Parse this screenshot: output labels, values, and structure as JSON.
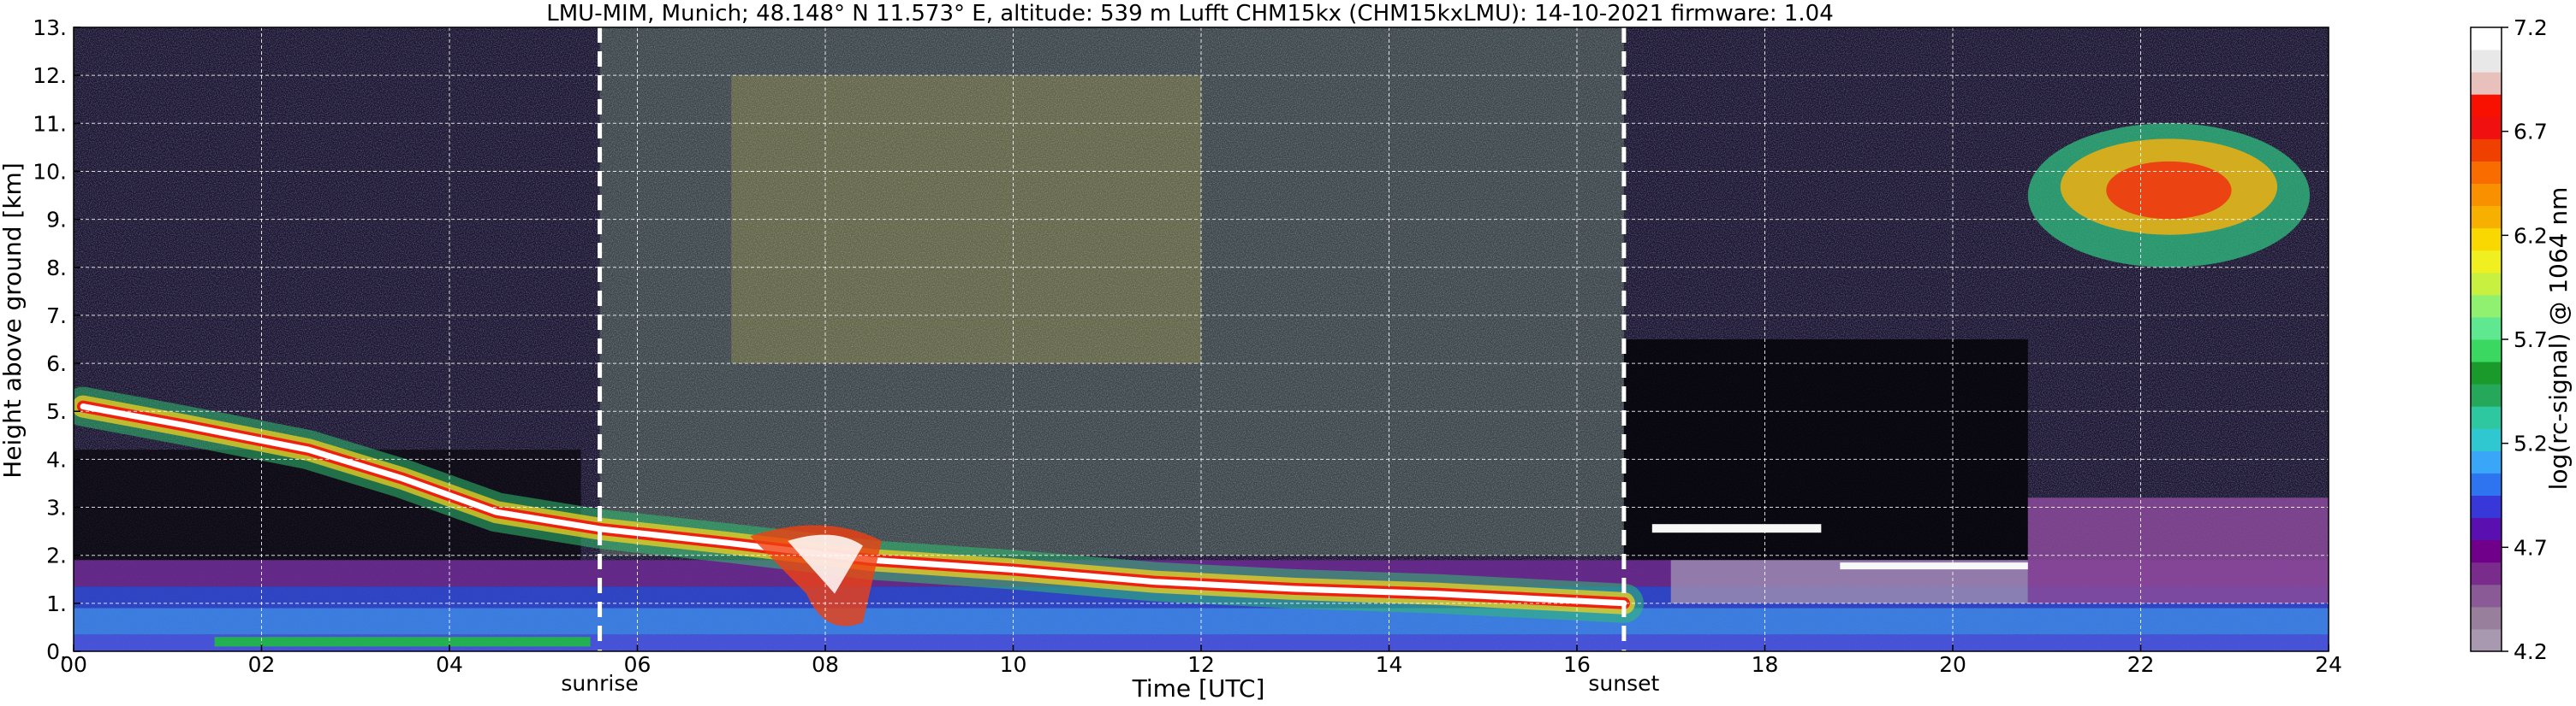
{
  "chart_data": {
    "type": "heatmap",
    "title": "LMU-MIM, Munich; 48.148° N 11.573° E, altitude: 539 m    Lufft CHM15kx (CHM15kxLMU): 14-10-2021    firmware: 1.04",
    "xlabel": "Time [UTC]",
    "ylabel": "Height above ground [km]",
    "xlim": [
      0,
      24
    ],
    "ylim": [
      0,
      13
    ],
    "x_ticks": [
      "00",
      "02",
      "04",
      "06",
      "08",
      "10",
      "12",
      "14",
      "16",
      "18",
      "20",
      "22",
      "24"
    ],
    "y_ticks": [
      "0.",
      "1.",
      "2.",
      "3.",
      "4.",
      "5.",
      "6.",
      "7.",
      "8.",
      "9.",
      "10.",
      "11.",
      "12.",
      "13."
    ],
    "grid": true,
    "markers": [
      {
        "name": "sunrise",
        "x": 5.6
      },
      {
        "name": "sunset",
        "x": 16.5
      }
    ],
    "colorbar": {
      "label": "log(rc-signal) @ 1064 nm",
      "range": [
        4.2,
        7.2
      ],
      "ticks": [
        "4.2",
        "4.7",
        "5.2",
        "5.7",
        "6.2",
        "6.7",
        "7.2"
      ],
      "colors": [
        "#a898b0",
        "#98809c",
        "#8a5a96",
        "#7a2c8c",
        "#70008a",
        "#5a10b0",
        "#3838d8",
        "#2e74f0",
        "#3aa6f8",
        "#30c8d0",
        "#2ec8a0",
        "#26a85a",
        "#1a9a2a",
        "#3ad860",
        "#60e890",
        "#90f070",
        "#c8f040",
        "#f0f020",
        "#f8d800",
        "#f8b000",
        "#f89000",
        "#f86c00",
        "#f04000",
        "#f01010",
        "#f81000",
        "#e8c0bc",
        "#e8e8e8",
        "#ffffff"
      ]
    },
    "layers": [
      {
        "name": "surface aerosol layer",
        "x_range": [
          0,
          24
        ],
        "height_range": [
          0,
          1.9
        ],
        "signal": 4.8
      },
      {
        "name": "boundary layer top",
        "x_range": [
          0,
          16.5
        ],
        "height_from": 5.1,
        "height_to": 1.0,
        "signal": 7.2
      },
      {
        "name": "daytime background noise",
        "x_range": [
          5.6,
          16.5
        ],
        "height_range": [
          2,
          13
        ],
        "signal": 5.6
      },
      {
        "name": "cirrus cloud",
        "x_range": [
          20.8,
          23.8
        ],
        "height_range": [
          8.0,
          11.0
        ],
        "signal": 6.4
      }
    ]
  }
}
